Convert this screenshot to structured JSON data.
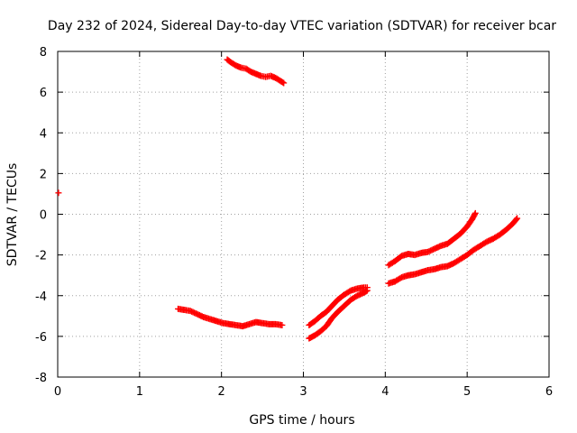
{
  "chart_data": {
    "type": "scatter",
    "title": "Day 232 of 2024, Sidereal Day-to-day VTEC variation (SDTVAR) for receiver bcar",
    "xlabel": "GPS time / hours",
    "ylabel": "SDTVAR / TECUs",
    "xlim": [
      0,
      6
    ],
    "ylim": [
      -8,
      8
    ],
    "xticks": [
      0,
      1,
      2,
      3,
      4,
      5,
      6
    ],
    "xtick_labels": [
      "0",
      "1",
      "2",
      "3",
      "4",
      "5",
      "6"
    ],
    "yticks": [
      -8,
      -6,
      -4,
      -2,
      0,
      2,
      4,
      6,
      8
    ],
    "ytick_labels": [
      "-8",
      "-6",
      "-4",
      "-2",
      "0",
      "2",
      "4",
      "6",
      "8"
    ],
    "grid": true,
    "marker": "+",
    "color": "#ff0000",
    "series": [
      {
        "name": "arc-0",
        "x": [
          0.01
        ],
        "y": [
          1.05
        ]
      },
      {
        "name": "arc-1",
        "x": [
          2.07,
          2.12,
          2.18,
          2.24,
          2.3,
          2.36,
          2.42,
          2.48,
          2.54,
          2.6,
          2.66,
          2.72,
          2.76
        ],
        "y": [
          7.6,
          7.45,
          7.3,
          7.2,
          7.15,
          7.0,
          6.9,
          6.8,
          6.75,
          6.8,
          6.7,
          6.55,
          6.45
        ]
      },
      {
        "name": "arc-2",
        "x": [
          1.47,
          1.55,
          1.62,
          1.7,
          1.78,
          1.86,
          1.94,
          2.02,
          2.1,
          2.18,
          2.26,
          2.34,
          2.42,
          2.5,
          2.58,
          2.66,
          2.74
        ],
        "y": [
          -4.65,
          -4.7,
          -4.75,
          -4.9,
          -5.05,
          -5.15,
          -5.25,
          -5.35,
          -5.4,
          -5.45,
          -5.5,
          -5.4,
          -5.3,
          -5.35,
          -5.4,
          -5.4,
          -5.45
        ]
      },
      {
        "name": "arc-3",
        "x": [
          3.07,
          3.14,
          3.21,
          3.28,
          3.35,
          3.42,
          3.5,
          3.58,
          3.66,
          3.74,
          3.78
        ],
        "y": [
          -6.1,
          -5.95,
          -5.75,
          -5.5,
          -5.1,
          -4.8,
          -4.5,
          -4.2,
          -4.0,
          -3.85,
          -3.75
        ]
      },
      {
        "name": "arc-4",
        "x": [
          3.07,
          3.14,
          3.21,
          3.28,
          3.35,
          3.42,
          3.5,
          3.58,
          3.66,
          3.74,
          3.78
        ],
        "y": [
          -5.45,
          -5.25,
          -5.0,
          -4.8,
          -4.5,
          -4.2,
          -3.95,
          -3.75,
          -3.65,
          -3.6,
          -3.6
        ]
      },
      {
        "name": "arc-5",
        "x": [
          4.04,
          4.12,
          4.2,
          4.28,
          4.36,
          4.44,
          4.52,
          4.6,
          4.68,
          4.76,
          4.84,
          4.92,
          5.0,
          5.06,
          5.1
        ],
        "y": [
          -2.5,
          -2.3,
          -2.05,
          -1.95,
          -2.0,
          -1.9,
          -1.85,
          -1.7,
          -1.55,
          -1.45,
          -1.2,
          -0.95,
          -0.6,
          -0.25,
          0.05
        ]
      },
      {
        "name": "arc-6",
        "x": [
          4.04,
          4.12,
          4.2,
          4.28,
          4.36,
          4.44,
          4.52,
          4.6,
          4.68,
          4.76,
          4.84,
          4.92,
          5.0,
          5.08,
          5.16,
          5.24,
          5.32,
          5.4,
          5.48,
          5.56,
          5.61
        ],
        "y": [
          -3.4,
          -3.3,
          -3.1,
          -3.0,
          -2.95,
          -2.85,
          -2.75,
          -2.7,
          -2.6,
          -2.55,
          -2.4,
          -2.2,
          -2.0,
          -1.75,
          -1.55,
          -1.35,
          -1.2,
          -1.0,
          -0.75,
          -0.45,
          -0.2
        ]
      }
    ]
  }
}
